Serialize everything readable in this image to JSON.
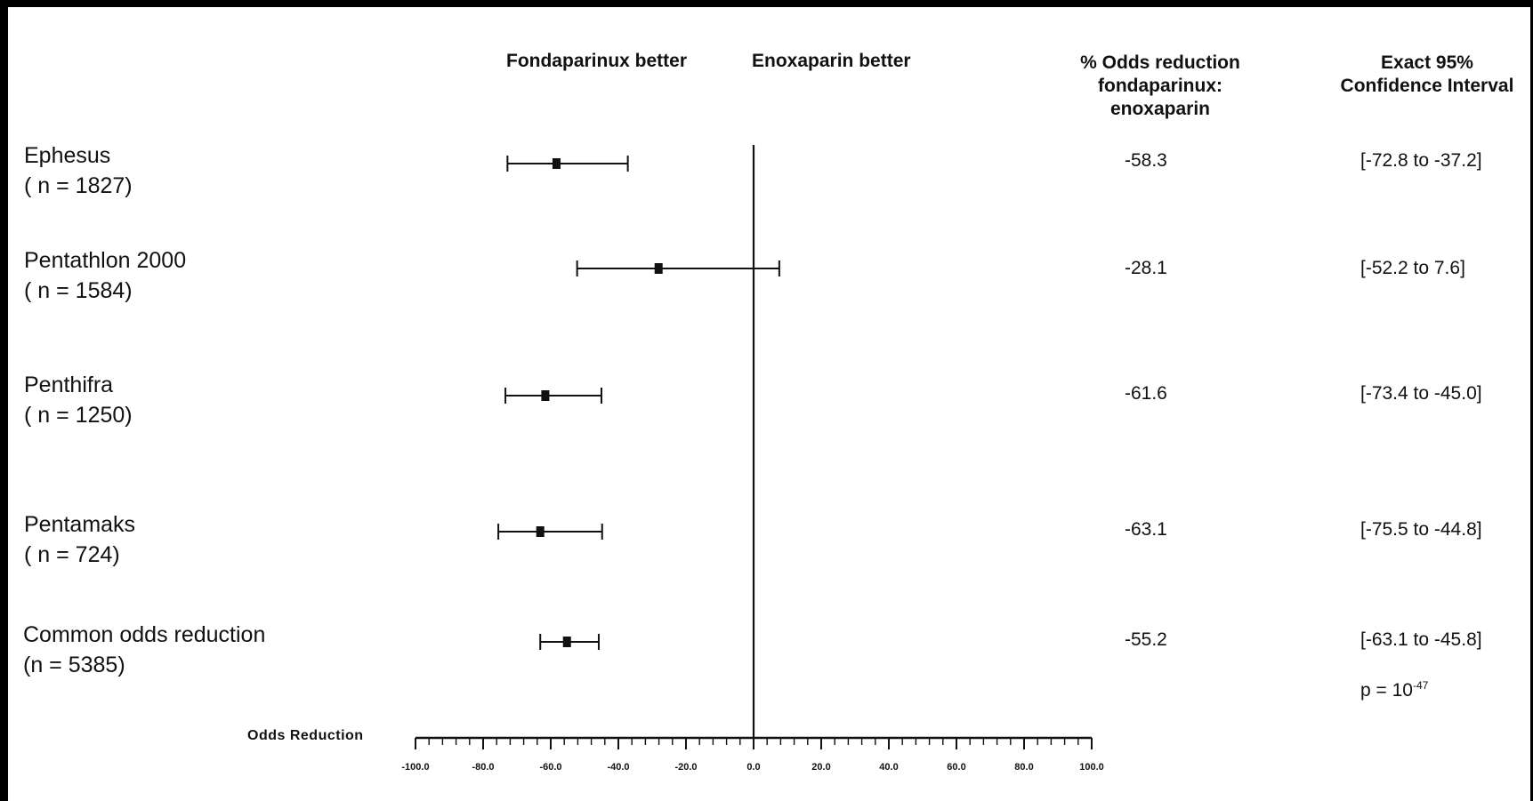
{
  "chart_data": {
    "type": "forest",
    "header": {
      "left_direction": "Fondaparinux better",
      "right_direction": "Enoxaparin better",
      "estimate_column": "% Odds reduction\nfondaparinux:\nenoxaparin",
      "ci_column": "Exact 95%\nConfidence Interval"
    },
    "xlabel": "Odds Reduction",
    "xlim": [
      -100,
      100
    ],
    "major_ticks": [
      -100,
      -80,
      -60,
      -40,
      -20,
      0,
      20,
      40,
      60,
      80,
      100
    ],
    "tick_labels": [
      "-100.0",
      "-80.0",
      "-60.0",
      "-40.0",
      "-20.0",
      "0.0",
      "20.0",
      "40.0",
      "60.0",
      "80.0",
      "100.0"
    ],
    "studies": [
      {
        "name": "Ephesus",
        "n_label": "( n = 1827)",
        "estimate": -58.3,
        "ci_low": -72.8,
        "ci_high": -37.2,
        "estimate_label": "-58.3",
        "ci_label": "[-72.8 to -37.2]"
      },
      {
        "name": "Pentathlon 2000",
        "n_label": "( n = 1584)",
        "estimate": -28.1,
        "ci_low": -52.2,
        "ci_high": 7.6,
        "estimate_label": "-28.1",
        "ci_label": "[-52.2 to 7.6]"
      },
      {
        "name": "Penthifra",
        "n_label": "( n = 1250)",
        "estimate": -61.6,
        "ci_low": -73.4,
        "ci_high": -45.0,
        "estimate_label": "-61.6",
        "ci_label": "[-73.4 to -45.0]"
      },
      {
        "name": "Pentamaks",
        "n_label": "( n = 724)",
        "estimate": -63.1,
        "ci_low": -75.5,
        "ci_high": -44.8,
        "estimate_label": "-63.1",
        "ci_label": "[-75.5 to -44.8]"
      },
      {
        "name": "Common odds reduction",
        "n_label": "(n = 5385)",
        "estimate": -55.2,
        "ci_low": -63.1,
        "ci_high": -45.8,
        "estimate_label": "-55.2",
        "ci_label": "[-63.1 to -45.8]"
      }
    ],
    "p_value": {
      "base": "p = 10",
      "exponent": "-47"
    }
  },
  "colors": {
    "background": "#ffffff",
    "frame": "#000000",
    "ink": "#111111"
  }
}
